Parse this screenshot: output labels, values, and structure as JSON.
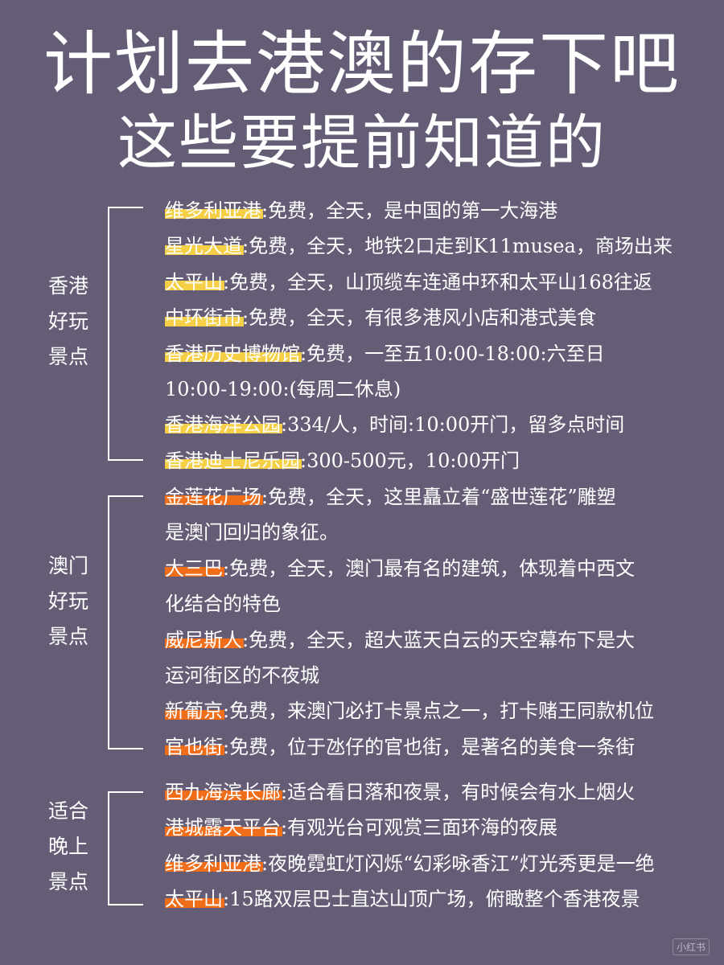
{
  "title": {
    "line1": "计划去港澳的存下吧",
    "line2": "这些要提前知道的"
  },
  "sections": [
    {
      "label": [
        "香港",
        "好玩",
        "景点"
      ],
      "highlight": "#f5cf45",
      "items": [
        {
          "name": "维多利亚港",
          "desc": ":免费，全天，是中国的第一大海港"
        },
        {
          "name": "星光大道",
          "desc": ":免费，全天，地铁2口走到K11musea，商场出来"
        },
        {
          "name": "太平山",
          "desc": ":免费，全天，山顶缆车连通中环和太平山168往返"
        },
        {
          "name": "中环街市",
          "desc": ":免费，全天，有很多港风小店和港式美食"
        },
        {
          "name": "香港历史博物馆",
          "desc": ":免费，一至五10:00-18:00:六至日",
          "cont": "10:00-19:00:(每周二休息)"
        },
        {
          "name": "香港海洋公园",
          "desc": ":334/人，时间:10:00开门，留多点时间"
        },
        {
          "name": "香港迪士尼乐园",
          "desc": ":300-500元，10:00开门"
        }
      ]
    },
    {
      "label": [
        "澳门",
        "好玩",
        "景点"
      ],
      "highlight": "#f06d1a",
      "items": [
        {
          "name": "金莲花广场",
          "desc": ":免费，全天，这里矗立着“盛世莲花”雕塑",
          "cont": "是澳门回归的象征。"
        },
        {
          "name": "大三巴",
          "desc": ":免费，全天，澳门最有名的建筑，体现着中西文",
          "cont": "化结合的特色"
        },
        {
          "name": "威尼斯人",
          "desc": ":免费，全天，超大蓝天白云的天空幕布下是大",
          "cont": "运河街区的不夜城"
        },
        {
          "name": "新葡京",
          "desc": ":免费，来澳门必打卡景点之一，打卡赌王同款机位"
        },
        {
          "name": "官也街",
          "desc": ":免费，位于氹仔的官也街，是著名的美食一条街"
        }
      ]
    },
    {
      "label": [
        "适合",
        "晚上",
        "景点"
      ],
      "highlight": "#f06d1a",
      "items": [
        {
          "name": "西九海滨长廊",
          "desc": ":适合看日落和夜景，有时候会有水上烟火"
        },
        {
          "name": "港城露天平台",
          "desc": ":有观光台可观赏三面环海的夜展"
        },
        {
          "name": "维多利亚港",
          "desc": ":夜晚霓虹灯闪烁“幻彩咏香江”灯光秀更是一绝"
        },
        {
          "name": "太平山",
          "desc": ":15路双层巴士直达山顶广场，俯瞰整个香港夜景"
        }
      ]
    }
  ],
  "watermark": "小红书"
}
